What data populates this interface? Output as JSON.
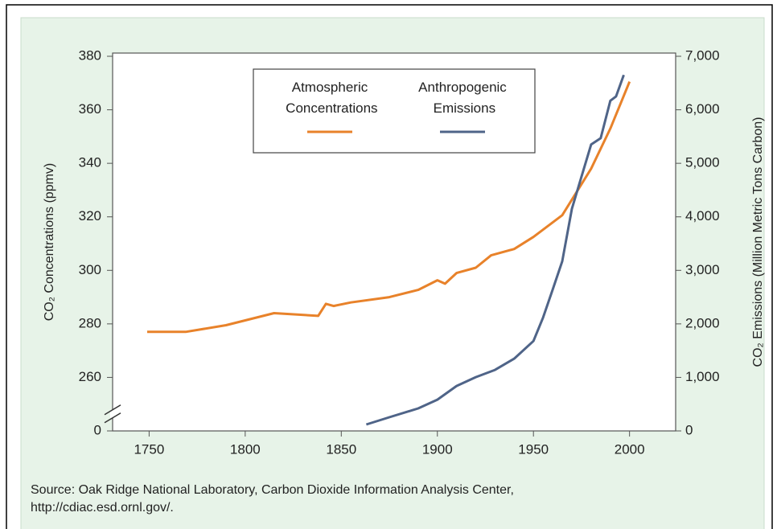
{
  "chart_data": {
    "type": "line",
    "x_label": null,
    "y_label": "CO₂ Concentrations (ppmv)",
    "y2_label": "CO₂ Emissions (Million Metric Tons Carbon)",
    "source": [
      "Source: Oak Ridge National Laboratory, Carbon Dioxide Information Analysis Center,",
      "http://cdiac.esd.ornl.gov/."
    ],
    "xlim": [
      1731,
      2024
    ],
    "xticks": [
      1750,
      1800,
      1850,
      1900,
      1950,
      2000
    ],
    "ylim": [
      240,
      380
    ],
    "yticks": [
      {
        "value": 240,
        "label": "0"
      },
      260,
      280,
      300,
      320,
      340,
      360,
      380
    ],
    "axis_break": true,
    "y2lim": [
      0,
      7000
    ],
    "y2ticks": [
      0,
      {
        "value": 1000,
        "label": "1,000"
      },
      {
        "value": 2000,
        "label": "2,000"
      },
      {
        "value": 3000,
        "label": "3,000"
      },
      {
        "value": 4000,
        "label": "4,000"
      },
      {
        "value": 5000,
        "label": "5,000"
      },
      {
        "value": 6000,
        "label": "6,000"
      },
      {
        "value": 7000,
        "label": "7,000"
      }
    ],
    "legend": "top-center",
    "series": [
      {
        "name": "Atmospheric Concentrations",
        "color": "#e8822a",
        "x": [
          1749,
          1769,
          1790,
          1815,
          1838,
          1842,
          1846,
          1855,
          1875,
          1890,
          1900,
          1904,
          1910,
          1920,
          1928,
          1940,
          1950,
          1965,
          1980,
          1990,
          2000
        ],
        "values": [
          277,
          277,
          279.5,
          284,
          283,
          287.5,
          286.7,
          288,
          290,
          292.7,
          296.3,
          295,
          299,
          301,
          305.6,
          308,
          312.5,
          320.6,
          338,
          353,
          370.5
        ]
      },
      {
        "name": "Anthropogenic Emissions",
        "color": "#4f6488",
        "axis": "y2",
        "x": [
          1863,
          1875,
          1890,
          1900,
          1910,
          1920,
          1930,
          1940,
          1950,
          1955,
          1960,
          1965,
          1970,
          1975,
          1980,
          1985,
          1990,
          1993,
          1997
        ],
        "values": [
          120,
          255,
          420,
          585,
          840,
          1005,
          1140,
          1350,
          1680,
          2120,
          2640,
          3170,
          4150,
          4750,
          5350,
          5470,
          6170,
          6250,
          6650
        ]
      }
    ]
  }
}
